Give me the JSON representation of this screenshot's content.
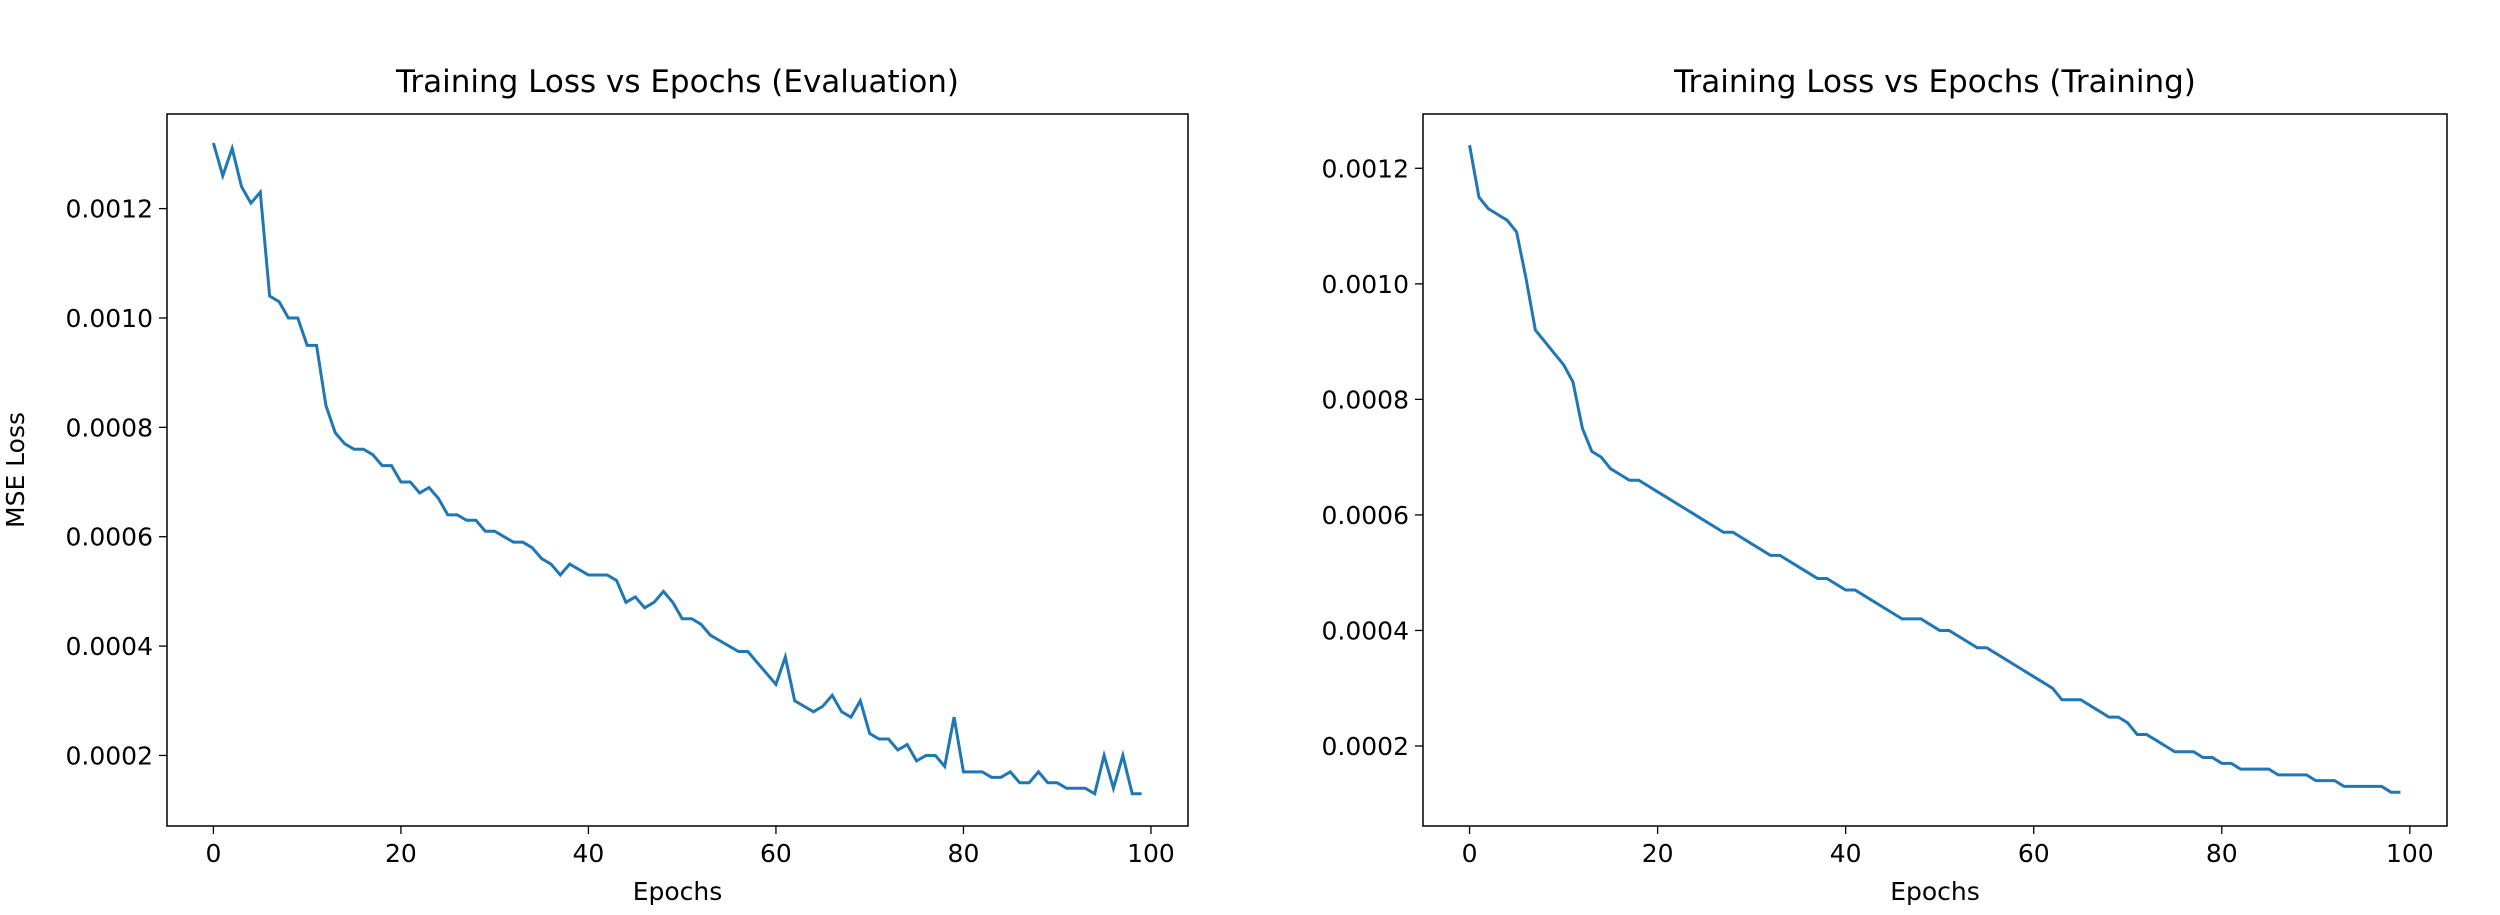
{
  "chart_data": [
    {
      "type": "line",
      "title": "Training Loss vs Epochs (Evaluation)",
      "xlabel": "Epochs",
      "ylabel": "MSE Loss",
      "x": [
        0,
        1,
        2,
        3,
        4,
        5,
        6,
        7,
        8,
        9,
        10,
        11,
        12,
        13,
        14,
        15,
        16,
        17,
        18,
        19,
        20,
        21,
        22,
        23,
        24,
        25,
        26,
        27,
        28,
        29,
        30,
        31,
        32,
        33,
        34,
        35,
        36,
        37,
        38,
        39,
        40,
        41,
        42,
        43,
        44,
        45,
        46,
        47,
        48,
        49,
        50,
        51,
        52,
        53,
        54,
        55,
        56,
        57,
        58,
        59,
        60,
        61,
        62,
        63,
        64,
        65,
        66,
        67,
        68,
        69,
        70,
        71,
        72,
        73,
        74,
        75,
        76,
        77,
        78,
        79,
        80,
        81,
        82,
        83,
        84,
        85,
        86,
        87,
        88,
        89,
        90,
        91,
        92,
        93,
        94,
        95,
        96,
        97,
        98,
        99
      ],
      "series": [
        {
          "name": "Evaluation",
          "color": "#1f77b4",
          "values": [
            0.00132,
            0.00126,
            0.00131,
            0.00124,
            0.00121,
            0.00123,
            0.00104,
            0.00103,
            0.001,
            0.001,
            0.00095,
            0.00095,
            0.00084,
            0.00079,
            0.00077,
            0.00076,
            0.00076,
            0.00075,
            0.00073,
            0.00073,
            0.0007,
            0.0007,
            0.00068,
            0.00069,
            0.00067,
            0.00064,
            0.00064,
            0.00063,
            0.00063,
            0.00061,
            0.00061,
            0.0006,
            0.00059,
            0.00059,
            0.00058,
            0.00056,
            0.00055,
            0.00053,
            0.00055,
            0.00054,
            0.00053,
            0.00053,
            0.00053,
            0.00052,
            0.00048,
            0.00049,
            0.00047,
            0.00048,
            0.0005,
            0.00048,
            0.00045,
            0.00045,
            0.00044,
            0.00042,
            0.00041,
            0.0004,
            0.00039,
            0.00039,
            0.00037,
            0.00035,
            0.00033,
            0.00038,
            0.0003,
            0.00029,
            0.00028,
            0.00029,
            0.00031,
            0.00028,
            0.00027,
            0.0003,
            0.00024,
            0.00023,
            0.00023,
            0.00021,
            0.00022,
            0.00019,
            0.0002,
            0.0002,
            0.00018,
            0.00027,
            0.00017,
            0.00017,
            0.00017,
            0.00016,
            0.00016,
            0.00017,
            0.00015,
            0.00015,
            0.00017,
            0.00015,
            0.00015,
            0.00014,
            0.00014,
            0.00014,
            0.00013,
            0.0002,
            0.00014,
            0.0002,
            0.00013,
            0.00013
          ]
        }
      ],
      "xlim": [
        -4.95,
        103.95
      ],
      "xticks": [
        0,
        20,
        40,
        60,
        80,
        100
      ],
      "ylim": [
        7.1e-05,
        0.001373
      ],
      "yticks": [
        0.0002,
        0.0004,
        0.0006,
        0.0008,
        {
          "value": 0.001,
          "label": "0.0010"
        },
        0.0012
      ]
    },
    {
      "type": "line",
      "title": "Training Loss vs Epochs (Training)",
      "xlabel": "Epochs",
      "x": [
        0,
        1,
        2,
        3,
        4,
        5,
        6,
        7,
        8,
        9,
        10,
        11,
        12,
        13,
        14,
        15,
        16,
        17,
        18,
        19,
        20,
        21,
        22,
        23,
        24,
        25,
        26,
        27,
        28,
        29,
        30,
        31,
        32,
        33,
        34,
        35,
        36,
        37,
        38,
        39,
        40,
        41,
        42,
        43,
        44,
        45,
        46,
        47,
        48,
        49,
        50,
        51,
        52,
        53,
        54,
        55,
        56,
        57,
        58,
        59,
        60,
        61,
        62,
        63,
        64,
        65,
        66,
        67,
        68,
        69,
        70,
        71,
        72,
        73,
        74,
        75,
        76,
        77,
        78,
        79,
        80,
        81,
        82,
        83,
        84,
        85,
        86,
        87,
        88,
        89,
        90,
        91,
        92,
        93,
        94,
        95,
        96,
        97,
        98,
        99
      ],
      "series": [
        {
          "name": "Training",
          "color": "#1f77b4",
          "values": [
            0.00124,
            0.00115,
            0.00113,
            0.00112,
            0.00111,
            0.00109,
            0.00101,
            0.00092,
            0.0009,
            0.00088,
            0.00086,
            0.00083,
            0.00075,
            0.00071,
            0.0007,
            0.00068,
            0.00067,
            0.00066,
            0.00066,
            0.00065,
            0.00064,
            0.00063,
            0.00062,
            0.00061,
            0.0006,
            0.00059,
            0.00058,
            0.00057,
            0.00057,
            0.00056,
            0.00055,
            0.00054,
            0.00053,
            0.00053,
            0.00052,
            0.00051,
            0.0005,
            0.00049,
            0.00049,
            0.00048,
            0.00047,
            0.00047,
            0.00046,
            0.00045,
            0.00044,
            0.00043,
            0.00042,
            0.00042,
            0.00042,
            0.00041,
            0.0004,
            0.0004,
            0.00039,
            0.00038,
            0.00037,
            0.00037,
            0.00036,
            0.00035,
            0.00034,
            0.00033,
            0.00032,
            0.00031,
            0.0003,
            0.00028,
            0.00028,
            0.00028,
            0.00027,
            0.00026,
            0.00025,
            0.00025,
            0.00024,
            0.00022,
            0.00022,
            0.00021,
            0.0002,
            0.00019,
            0.00019,
            0.00019,
            0.00018,
            0.00018,
            0.00017,
            0.00017,
            0.00016,
            0.00016,
            0.00016,
            0.00016,
            0.00015,
            0.00015,
            0.00015,
            0.00015,
            0.00014,
            0.00014,
            0.00014,
            0.00013,
            0.00013,
            0.00013,
            0.00013,
            0.00013,
            0.00012,
            0.00012
          ]
        }
      ],
      "xlim": [
        -4.95,
        103.95
      ],
      "xticks": [
        0,
        20,
        40,
        60,
        80,
        100
      ],
      "ylim": [
        6.15e-05,
        0.001294
      ],
      "yticks": [
        0.0002,
        0.0004,
        0.0006,
        0.0008,
        {
          "value": 0.001,
          "label": "0.0010"
        },
        0.0012
      ]
    }
  ]
}
